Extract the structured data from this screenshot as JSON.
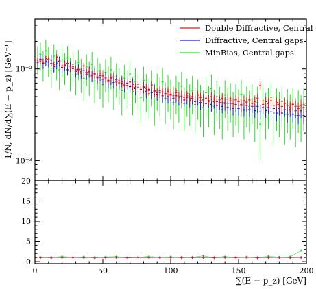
{
  "chart_data": [
    {
      "type": "scatter",
      "subtype": "errorbar-histogram",
      "title": "",
      "xlabel": "∑(E − p_z) [GeV]",
      "ylabel": "1/N, dN/d∑(E − p_z) [GeV⁻¹]",
      "xlim": [
        0,
        200
      ],
      "ylim": [
        0.0006,
        0.035
      ],
      "yscale": "log",
      "legend_position": "top-right",
      "grid": false,
      "x_ticks": [
        0,
        50,
        100,
        150,
        200
      ],
      "x_tick_labels": [
        "0",
        "50",
        "100",
        "150",
        "200"
      ],
      "y_ticks": [
        0.001,
        0.01
      ],
      "y_tick_labels": [
        "10⁻³",
        "10⁻²"
      ],
      "x": [
        2,
        4,
        6,
        8,
        10,
        12,
        14,
        16,
        18,
        20,
        22,
        24,
        26,
        28,
        30,
        32,
        34,
        36,
        38,
        40,
        42,
        44,
        46,
        48,
        50,
        52,
        54,
        56,
        58,
        60,
        62,
        64,
        66,
        68,
        70,
        72,
        74,
        76,
        78,
        80,
        82,
        84,
        86,
        88,
        90,
        92,
        94,
        96,
        98,
        100,
        102,
        104,
        106,
        108,
        110,
        112,
        114,
        116,
        118,
        120,
        122,
        124,
        126,
        128,
        130,
        132,
        134,
        136,
        138,
        140,
        142,
        144,
        146,
        148,
        150,
        152,
        154,
        156,
        158,
        160,
        162,
        164,
        166,
        168,
        170,
        172,
        174,
        176,
        178,
        180,
        182,
        184,
        186,
        188,
        190,
        192,
        194,
        196,
        198,
        200
      ],
      "series": [
        {
          "name": "Double Diffractive, Central gaps",
          "color": "#e41a1c",
          "values": [
            0.0125,
            0.0122,
            0.0118,
            0.013,
            0.0128,
            0.0115,
            0.0112,
            0.0135,
            0.012,
            0.0108,
            0.0112,
            0.0115,
            0.0102,
            0.0105,
            0.0098,
            0.0096,
            0.0094,
            0.0108,
            0.0092,
            0.0095,
            0.0086,
            0.0088,
            0.0082,
            0.009,
            0.0084,
            0.0078,
            0.0075,
            0.008,
            0.0082,
            0.0072,
            0.0074,
            0.007,
            0.0068,
            0.0066,
            0.0072,
            0.0065,
            0.0063,
            0.0068,
            0.006,
            0.0064,
            0.0062,
            0.0058,
            0.0066,
            0.0057,
            0.0055,
            0.0058,
            0.0056,
            0.0054,
            0.0057,
            0.0053,
            0.0051,
            0.0055,
            0.005,
            0.0052,
            0.0049,
            0.0051,
            0.0048,
            0.005,
            0.0047,
            0.0052,
            0.0049,
            0.0046,
            0.0048,
            0.0045,
            0.005,
            0.0047,
            0.0044,
            0.0046,
            0.0048,
            0.0043,
            0.0047,
            0.0045,
            0.0042,
            0.0046,
            0.0044,
            0.0041,
            0.0045,
            0.0043,
            0.0046,
            0.0042,
            0.0044,
            0.0048,
            0.0066,
            0.0041,
            0.0044,
            0.0042,
            0.0045,
            0.004,
            0.0043,
            0.0041,
            0.0039,
            0.0042,
            0.004,
            0.0038,
            0.0041,
            0.0039,
            0.0037,
            0.004,
            0.0038,
            0.0042
          ],
          "errors": [
            0.0008,
            0.0008,
            0.0008,
            0.0009,
            0.0009,
            0.0008,
            0.0008,
            0.001,
            0.0009,
            0.0008,
            0.0008,
            0.0009,
            0.0008,
            0.0008,
            0.0008,
            0.0008,
            0.0008,
            0.0009,
            0.0008,
            0.0008,
            0.0008,
            0.0008,
            0.0008,
            0.0008,
            0.0008,
            0.0008,
            0.0007,
            0.0008,
            0.0008,
            0.0007,
            0.0007,
            0.0007,
            0.0007,
            0.0007,
            0.0007,
            0.0007,
            0.0007,
            0.0007,
            0.0007,
            0.0007,
            0.0007,
            0.0007,
            0.0007,
            0.0007,
            0.0006,
            0.0007,
            0.0007,
            0.0006,
            0.0007,
            0.0006,
            0.0006,
            0.0007,
            0.0006,
            0.0006,
            0.0006,
            0.0006,
            0.0006,
            0.0006,
            0.0006,
            0.0006,
            0.0006,
            0.0006,
            0.0006,
            0.0006,
            0.0006,
            0.0006,
            0.0006,
            0.0006,
            0.0006,
            0.0006,
            0.0006,
            0.0006,
            0.0006,
            0.0006,
            0.0006,
            0.0006,
            0.0006,
            0.0006,
            0.0006,
            0.0006,
            0.0006,
            0.0006,
            0.0007,
            0.0006,
            0.0006,
            0.0006,
            0.0006,
            0.0006,
            0.0006,
            0.0006,
            0.0006,
            0.0006,
            0.0006,
            0.0006,
            0.0006,
            0.0006,
            0.0006,
            0.0006,
            0.0006,
            0.0006
          ]
        },
        {
          "name": "Diffractive, Central gaps",
          "color": "#1f1fd6",
          "values": [
            0.0118,
            0.0128,
            0.0115,
            0.0122,
            0.0119,
            0.0125,
            0.0106,
            0.0114,
            0.0122,
            0.0104,
            0.0109,
            0.0098,
            0.0107,
            0.0101,
            0.0094,
            0.0099,
            0.009,
            0.0096,
            0.0088,
            0.0093,
            0.0084,
            0.0089,
            0.008,
            0.0085,
            0.0077,
            0.0081,
            0.0073,
            0.0078,
            0.0071,
            0.0076,
            0.0069,
            0.0073,
            0.0066,
            0.007,
            0.0064,
            0.0068,
            0.0061,
            0.0065,
            0.0059,
            0.0063,
            0.0057,
            0.006,
            0.0055,
            0.0058,
            0.0053,
            0.0056,
            0.0051,
            0.0054,
            0.005,
            0.0052,
            0.0048,
            0.0051,
            0.0047,
            0.005,
            0.0046,
            0.0049,
            0.0045,
            0.0048,
            0.0044,
            0.0047,
            0.0043,
            0.0046,
            0.0042,
            0.0045,
            0.0041,
            0.0044,
            0.004,
            0.0043,
            0.0039,
            0.0042,
            0.0038,
            0.0042,
            0.0037,
            0.0041,
            0.0037,
            0.004,
            0.0036,
            0.004,
            0.0036,
            0.0039,
            0.0035,
            0.0039,
            0.0034,
            0.0038,
            0.0035,
            0.0038,
            0.0034,
            0.0037,
            0.0033,
            0.0037,
            0.0033,
            0.0036,
            0.0032,
            0.0036,
            0.0032,
            0.0035,
            0.0031,
            0.0035,
            0.0031,
            0.0034
          ],
          "errors": [
            0.0015,
            0.0016,
            0.0015,
            0.0015,
            0.0015,
            0.0016,
            0.0014,
            0.0015,
            0.0015,
            0.0014,
            0.0014,
            0.0013,
            0.0014,
            0.0014,
            0.0013,
            0.0013,
            0.0012,
            0.0013,
            0.0012,
            0.0013,
            0.0012,
            0.0012,
            0.0011,
            0.0012,
            0.0011,
            0.0011,
            0.0011,
            0.0011,
            0.001,
            0.0011,
            0.001,
            0.001,
            0.001,
            0.001,
            0.0009,
            0.001,
            0.0009,
            0.0009,
            0.0009,
            0.0009,
            0.0009,
            0.0009,
            0.0008,
            0.0009,
            0.0008,
            0.0008,
            0.0008,
            0.0008,
            0.0008,
            0.0008,
            0.0008,
            0.0008,
            0.0007,
            0.0008,
            0.0007,
            0.0008,
            0.0007,
            0.0007,
            0.0007,
            0.0007,
            0.0007,
            0.0007,
            0.0007,
            0.0007,
            0.0007,
            0.0007,
            0.0007,
            0.0007,
            0.0006,
            0.0007,
            0.0006,
            0.0007,
            0.0006,
            0.0007,
            0.0006,
            0.0006,
            0.0006,
            0.0006,
            0.0006,
            0.0006,
            0.0006,
            0.0006,
            0.0006,
            0.0006,
            0.0006,
            0.0006,
            0.0006,
            0.0006,
            0.0006,
            0.0006,
            0.0006,
            0.0006,
            0.0006,
            0.0006,
            0.0006,
            0.0006,
            0.0006,
            0.0006,
            0.0006,
            0.0006
          ]
        },
        {
          "name": "MinBias, Central gaps",
          "color": "#22dd22",
          "values": [
            0.0132,
            0.0145,
            0.0115,
            0.0158,
            0.0128,
            0.0102,
            0.0138,
            0.0118,
            0.0098,
            0.0125,
            0.0108,
            0.0132,
            0.0095,
            0.0112,
            0.0088,
            0.0118,
            0.0092,
            0.0079,
            0.0105,
            0.0086,
            0.0112,
            0.0074,
            0.0095,
            0.0081,
            0.0068,
            0.0092,
            0.0075,
            0.0098,
            0.0065,
            0.0082,
            0.0071,
            0.0058,
            0.0079,
            0.0066,
            0.0088,
            0.0057,
            0.0072,
            0.0063,
            0.0049,
            0.0075,
            0.0061,
            0.0054,
            0.0068,
            0.0047,
            0.0062,
            0.0055,
            0.0072,
            0.0048,
            0.006,
            0.0052,
            0.0043,
            0.0058,
            0.0049,
            0.0065,
            0.0042,
            0.0054,
            0.0046,
            0.0058,
            0.0041,
            0.0052,
            0.0045,
            0.0038,
            0.0055,
            0.0044,
            0.0061,
            0.0039,
            0.005,
            0.0043,
            0.0036,
            0.0052,
            0.0042,
            0.0048,
            0.0037,
            0.0046,
            0.004,
            0.0053,
            0.0035,
            0.0044,
            0.0039,
            0.0047,
            0.0034,
            0.0043,
            0.0025,
            0.0045,
            0.0036,
            0.0042,
            0.0049,
            0.0033,
            0.0041,
            0.0037,
            0.0044,
            0.0032,
            0.004,
            0.0035,
            0.0042,
            0.0031,
            0.0039,
            0.0034,
            0.0041,
            0.0036
          ],
          "errors": [
            0.0045,
            0.0048,
            0.0042,
            0.005,
            0.0046,
            0.004,
            0.0047,
            0.0043,
            0.0039,
            0.0044,
            0.0041,
            0.0046,
            0.0038,
            0.0042,
            0.0036,
            0.0043,
            0.0037,
            0.0034,
            0.004,
            0.0035,
            0.0041,
            0.0032,
            0.0037,
            0.0034,
            0.003,
            0.0036,
            0.0032,
            0.0038,
            0.0029,
            0.0033,
            0.003,
            0.0027,
            0.0032,
            0.0029,
            0.0035,
            0.0026,
            0.003,
            0.0028,
            0.0024,
            0.0031,
            0.0027,
            0.0025,
            0.0029,
            0.0023,
            0.0027,
            0.0025,
            0.003,
            0.0023,
            0.0026,
            0.0024,
            0.0021,
            0.0026,
            0.0023,
            0.0028,
            0.0021,
            0.0024,
            0.0022,
            0.0026,
            0.0021,
            0.0024,
            0.0022,
            0.002,
            0.0025,
            0.0021,
            0.0026,
            0.002,
            0.0023,
            0.0021,
            0.0019,
            0.0023,
            0.0021,
            0.0022,
            0.0019,
            0.0022,
            0.002,
            0.0023,
            0.0018,
            0.0021,
            0.0019,
            0.0022,
            0.0018,
            0.0021,
            0.0015,
            0.0021,
            0.0019,
            0.002,
            0.0022,
            0.0018,
            0.002,
            0.0019,
            0.0021,
            0.0017,
            0.002,
            0.0018,
            0.002,
            0.0017,
            0.0019,
            0.0018,
            0.002,
            0.0018
          ]
        }
      ]
    },
    {
      "type": "scatter",
      "subtype": "ratio-panel",
      "title": "",
      "xlabel": "∑(E − p_z) [GeV]",
      "ylabel": "",
      "xlim": [
        0,
        200
      ],
      "ylim": [
        -0.5,
        20
      ],
      "x_ticks": [
        0,
        50,
        100,
        150,
        200
      ],
      "x_tick_labels": [
        "0",
        "50",
        "100",
        "150",
        "200"
      ],
      "y_ticks": [
        0,
        5,
        10,
        15,
        20
      ],
      "y_tick_labels": [
        "0",
        "5",
        "10",
        "15",
        "20"
      ],
      "grid": false,
      "x": [
        4,
        12,
        20,
        28,
        36,
        44,
        52,
        60,
        68,
        76,
        84,
        92,
        100,
        108,
        116,
        124,
        132,
        140,
        148,
        156,
        164,
        172,
        180,
        188,
        196
      ],
      "series": [
        {
          "name": "Double Diffractive, Central gaps",
          "color": "#e41a1c",
          "values": [
            1.0,
            1.0,
            1.0,
            1.0,
            1.0,
            1.0,
            1.0,
            1.0,
            1.0,
            1.0,
            1.0,
            1.0,
            1.0,
            1.0,
            1.0,
            1.0,
            1.0,
            1.0,
            1.0,
            1.0,
            1.0,
            1.0,
            1.0,
            1.0,
            1.0
          ]
        },
        {
          "name": "Diffractive, Central gaps",
          "color": "#1f1fd6",
          "values": [
            0.95,
            1.05,
            0.98,
            1.02,
            0.97,
            1.04,
            0.96,
            1.03,
            0.98,
            1.01,
            0.95,
            1.02,
            0.99,
            1.05,
            0.97,
            1.0,
            0.96,
            1.03,
            0.98,
            1.04,
            0.97,
            0.99,
            1.02,
            0.96,
            1.01
          ]
        },
        {
          "name": "MinBias, Central gaps",
          "color": "#22dd22",
          "values": [
            1.1,
            0.9,
            1.3,
            0.95,
            1.2,
            0.85,
            1.15,
            1.25,
            0.9,
            1.05,
            1.3,
            0.95,
            1.2,
            0.9,
            1.1,
            1.4,
            0.95,
            1.25,
            1.0,
            1.15,
            0.9,
            1.35,
            1.05,
            1.2,
            2.7
          ]
        }
      ]
    }
  ],
  "labels": {
    "ylabel_top": "1/N, dN/d∑(E − p_z) [GeV⁻¹]",
    "xlabel": "∑(E − p_z) [GeV]",
    "legend": [
      "Double Diffractive, Central gaps",
      "Diffractive, Central gaps",
      "MinBias, Central gaps"
    ]
  }
}
